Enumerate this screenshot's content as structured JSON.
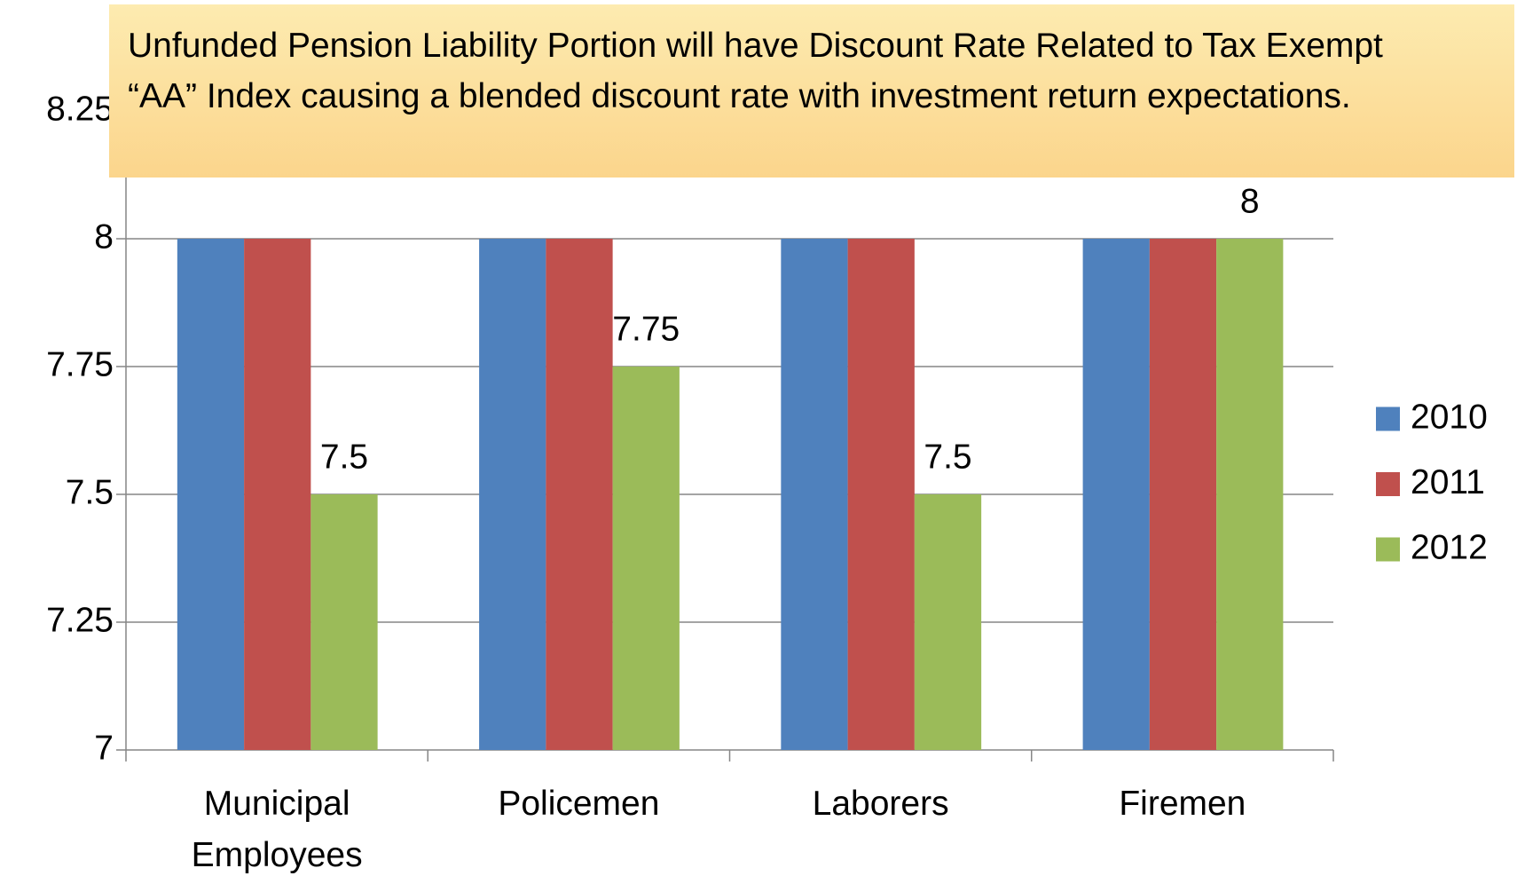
{
  "chart_data": {
    "type": "bar",
    "annotation": "Unfunded Pension Liability Portion will have Discount Rate Related to Tax Exempt “AA” Index causing a blended discount rate with investment return expectations.",
    "categories": [
      "Municipal Employees",
      "Policemen",
      "Laborers",
      "Firemen"
    ],
    "series": [
      {
        "name": "2010",
        "color": "#4f81bd",
        "values": [
          8,
          8,
          8,
          8
        ]
      },
      {
        "name": "2011",
        "color": "#c0504d",
        "values": [
          8,
          8,
          8,
          8
        ]
      },
      {
        "name": "2012",
        "color": "#9bbb59",
        "values": [
          7.5,
          7.75,
          7.5,
          8
        ],
        "labels": true
      }
    ],
    "ylim": [
      7,
      8.25
    ],
    "yticks": [
      7,
      7.25,
      7.5,
      7.75,
      8,
      8.25
    ],
    "grid": true,
    "legend": "right"
  }
}
